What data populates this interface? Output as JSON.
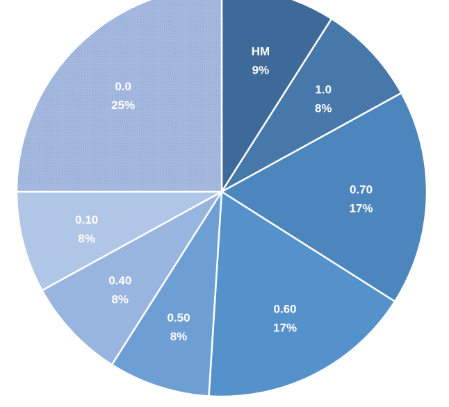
{
  "chart_data": {
    "type": "pie",
    "title": "",
    "start_angle_deg": 0,
    "direction": "clockwise",
    "slices": [
      {
        "label": "HM",
        "value": 9,
        "pct_label": "9%",
        "color": "#3E6A9A"
      },
      {
        "label": "1.0",
        "value": 8,
        "pct_label": "8%",
        "color": "#4678AA"
      },
      {
        "label": "0.70",
        "value": 17,
        "pct_label": "17%",
        "color": "#4D86BD"
      },
      {
        "label": "0.60",
        "value": 17,
        "pct_label": "17%",
        "color": "#5592CB"
      },
      {
        "label": "0.50",
        "value": 8,
        "pct_label": "8%",
        "color": "#6E9FD4"
      },
      {
        "label": "0.40",
        "value": 8,
        "pct_label": "8%",
        "color": "#97B5DE"
      },
      {
        "label": "0.10",
        "value": 8,
        "pct_label": "8%",
        "color": "#B0C6E6"
      },
      {
        "label": "0.0",
        "value": 25,
        "pct_label": "25%",
        "color": "#9FB5DE",
        "pattern": "cross-hatch"
      }
    ]
  }
}
